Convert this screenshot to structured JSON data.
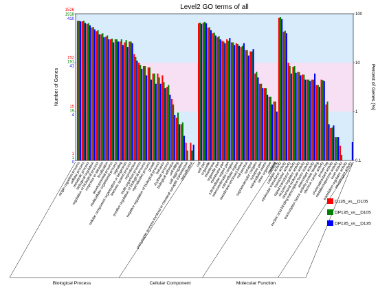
{
  "chart_data": {
    "type": "bar",
    "title": "Level2 GO terms of all",
    "ylabel_left": "Number of Genes",
    "ylabel_right": "Percent of Genes (%)",
    "y_scale": "log",
    "ylim_percent": [
      0.1,
      100
    ],
    "right_ticks": [
      "100",
      "10",
      "1",
      "0.1"
    ],
    "left_ticks": [
      {
        "level": "100",
        "values": [
          "1526",
          "1918",
          "410"
        ]
      },
      {
        "level": "10",
        "values": [
          "152",
          "191",
          "41"
        ]
      },
      {
        "level": "1",
        "values": [
          "15",
          "19",
          "4"
        ]
      },
      {
        "level": "0.1",
        "values": [
          "1",
          "1",
          "0"
        ]
      }
    ],
    "series": [
      {
        "name": "D135_vs__D105",
        "color": "#ff0000"
      },
      {
        "name": "DP135_vs__D105",
        "color": "#008000"
      },
      {
        "name": "DP135_vs__D135",
        "color": "#0000ff"
      }
    ],
    "groups": [
      {
        "name": "Biological Process",
        "categories": [
          {
            "label": "single-organism process",
            "values": [
              72,
              72,
              70
            ]
          },
          {
            "label": "cellular process",
            "values": [
              70,
              72,
              65
            ]
          },
          {
            "label": "metabolic process",
            "values": [
              62,
              64,
              58
            ]
          },
          {
            "label": "biological regulation",
            "values": [
              52,
              54,
              48
            ]
          },
          {
            "label": "regulation of biological process",
            "values": [
              44,
              46,
              38
            ]
          },
          {
            "label": "response to stimulus",
            "values": [
              38,
              40,
              33
            ]
          },
          {
            "label": "localization",
            "values": [
              34,
              36,
              30
            ]
          },
          {
            "label": "developmental process",
            "values": [
              30,
              31,
              26
            ]
          },
          {
            "label": "multicellular organismal process",
            "values": [
              30,
              30,
              27
            ]
          },
          {
            "label": "signaling",
            "values": [
              27,
              30,
              23
            ]
          },
          {
            "label": "cellular component organization or biogenesis",
            "values": [
              26,
              29,
              21
            ]
          },
          {
            "label": "immune system process",
            "values": [
              27,
              27,
              25
            ]
          },
          {
            "label": "reproduction",
            "values": [
              15,
              13,
              11
            ]
          },
          {
            "label": "multi-organism process",
            "values": [
              10,
              9,
              7.5
            ]
          },
          {
            "label": "positive regulation of biological process",
            "values": [
              8.5,
              8.5,
              5.5
            ]
          },
          {
            "label": "reproductive process",
            "values": [
              8,
              8,
              4.5
            ]
          },
          {
            "label": "growth",
            "values": [
              6,
              6,
              3.7
            ]
          },
          {
            "label": "negative regulation of biological process",
            "values": [
              6,
              5,
              3.7
            ]
          },
          {
            "label": "behavior",
            "values": [
              5.5,
              4,
              3
            ]
          },
          {
            "label": "rhythmic process",
            "values": [
              3.2,
              3.5,
              2.2
            ]
          },
          {
            "label": "biological adhesion",
            "values": [
              1.8,
              1.4,
              0.85
            ]
          },
          {
            "label": "cell killing",
            "values": [
              0.75,
              0.95,
              0.55
            ]
          },
          {
            "label": "cell aggregation",
            "values": [
              0.55,
              0.6,
              0.32
            ]
          },
          {
            "label": "presynaptic process involved in chemical synaptic transmission",
            "values": [
              0.23,
              0.16,
              0.0
            ]
          },
          {
            "label": "detoxification",
            "values": [
              0.23,
              0.16,
              0.21
            ]
          }
        ]
      },
      {
        "name": "Cellular Component",
        "categories": [
          {
            "label": "cell",
            "values": [
              64,
              66,
              62
            ]
          },
          {
            "label": "cell part",
            "values": [
              66,
              68,
              64
            ]
          },
          {
            "label": "organelle",
            "values": [
              52,
              53,
              46
            ]
          },
          {
            "label": "membrane",
            "values": [
              40,
              41,
              36
            ]
          },
          {
            "label": "organelle part",
            "values": [
              33,
              35,
              30
            ]
          },
          {
            "label": "membrane part",
            "values": [
              28,
              27,
              25
            ]
          },
          {
            "label": "extracellular region part",
            "values": [
              30,
              28,
              32
            ]
          },
          {
            "label": "macromolecular complex",
            "values": [
              26,
              26,
              23
            ]
          },
          {
            "label": "extracellular region",
            "values": [
              25,
              24,
              22
            ]
          },
          {
            "label": "membrane-enclosed lumen",
            "values": [
              21,
              22,
              25
            ]
          },
          {
            "label": "cell junction",
            "values": [
              18,
              18,
              14
            ]
          },
          {
            "label": "synapse",
            "values": [
              17,
              17,
              19
            ]
          },
          {
            "label": "supramolecular complex",
            "values": [
              6,
              6.5,
              5
            ]
          },
          {
            "label": "synapse part",
            "values": [
              3.7,
              3.7,
              3
            ]
          },
          {
            "label": "extracellular matrix",
            "values": [
              3,
              3,
              2.2
            ]
          },
          {
            "label": "other organism",
            "values": [
              2,
              2,
              1.4
            ]
          },
          {
            "label": "nucleoid",
            "values": [
              1.6,
              1.6,
              1
            ]
          }
        ]
      },
      {
        "name": "Molecular Function",
        "categories": [
          {
            "label": "binding",
            "values": [
              0.0,
              0.12,
              0.0
            ]
          },
          {
            "label": "catalytic activity",
            "values": [
              83,
              85,
              78
            ]
          },
          {
            "label": "molecular transducer activity",
            "values": [
              43,
              45,
              40
            ]
          },
          {
            "label": "transporter activity",
            "values": [
              10,
              8.5,
              6
            ]
          },
          {
            "label": "signal transducer activity",
            "values": [
              8.2,
              8.5,
              6.2
            ]
          },
          {
            "label": "enzyme regulator activity",
            "values": [
              6.5,
              6.4,
              5.5
            ]
          },
          {
            "label": "structural molecule activity",
            "values": [
              5.7,
              5.7,
              4.5
            ]
          },
          {
            "label": "nucleic acid binding transcription factor activity",
            "values": [
              4.5,
              4.5,
              4.2
            ]
          },
          {
            "label": "antioxidant activity",
            "values": [
              4.5,
              4.5,
              6
            ]
          },
          {
            "label": "transcription factor activity protein binding",
            "values": [
              3.5,
              3.5,
              3.2
            ]
          },
          {
            "label": "electron carrier activity",
            "values": [
              4.5,
              4.4,
              4.2
            ]
          },
          {
            "label": "protein tag",
            "values": [
              1.4,
              1.6,
              0.55
            ]
          },
          {
            "label": "chemoattractant activity",
            "values": [
              0.46,
              0.47,
              0.52
            ]
          },
          {
            "label": "metallochaperone activity",
            "values": [
              0.3,
              0.3,
              0.3
            ]
          },
          {
            "label": "toxin activity",
            "values": [
              0.2,
              0.13,
              0.0
            ]
          },
          {
            "label": "translation regulator activity",
            "values": [
              0.0,
              0.0,
              0.0
            ]
          },
          {
            "label": "morphogen activity",
            "values": [
              0.0,
              0.0,
              0.24
            ]
          }
        ]
      }
    ],
    "legend_placement": "right",
    "band_colors": {
      "upper": "#d8ecfb",
      "middle": "#f7e0f3",
      "lower": "#d8ecfb"
    }
  }
}
